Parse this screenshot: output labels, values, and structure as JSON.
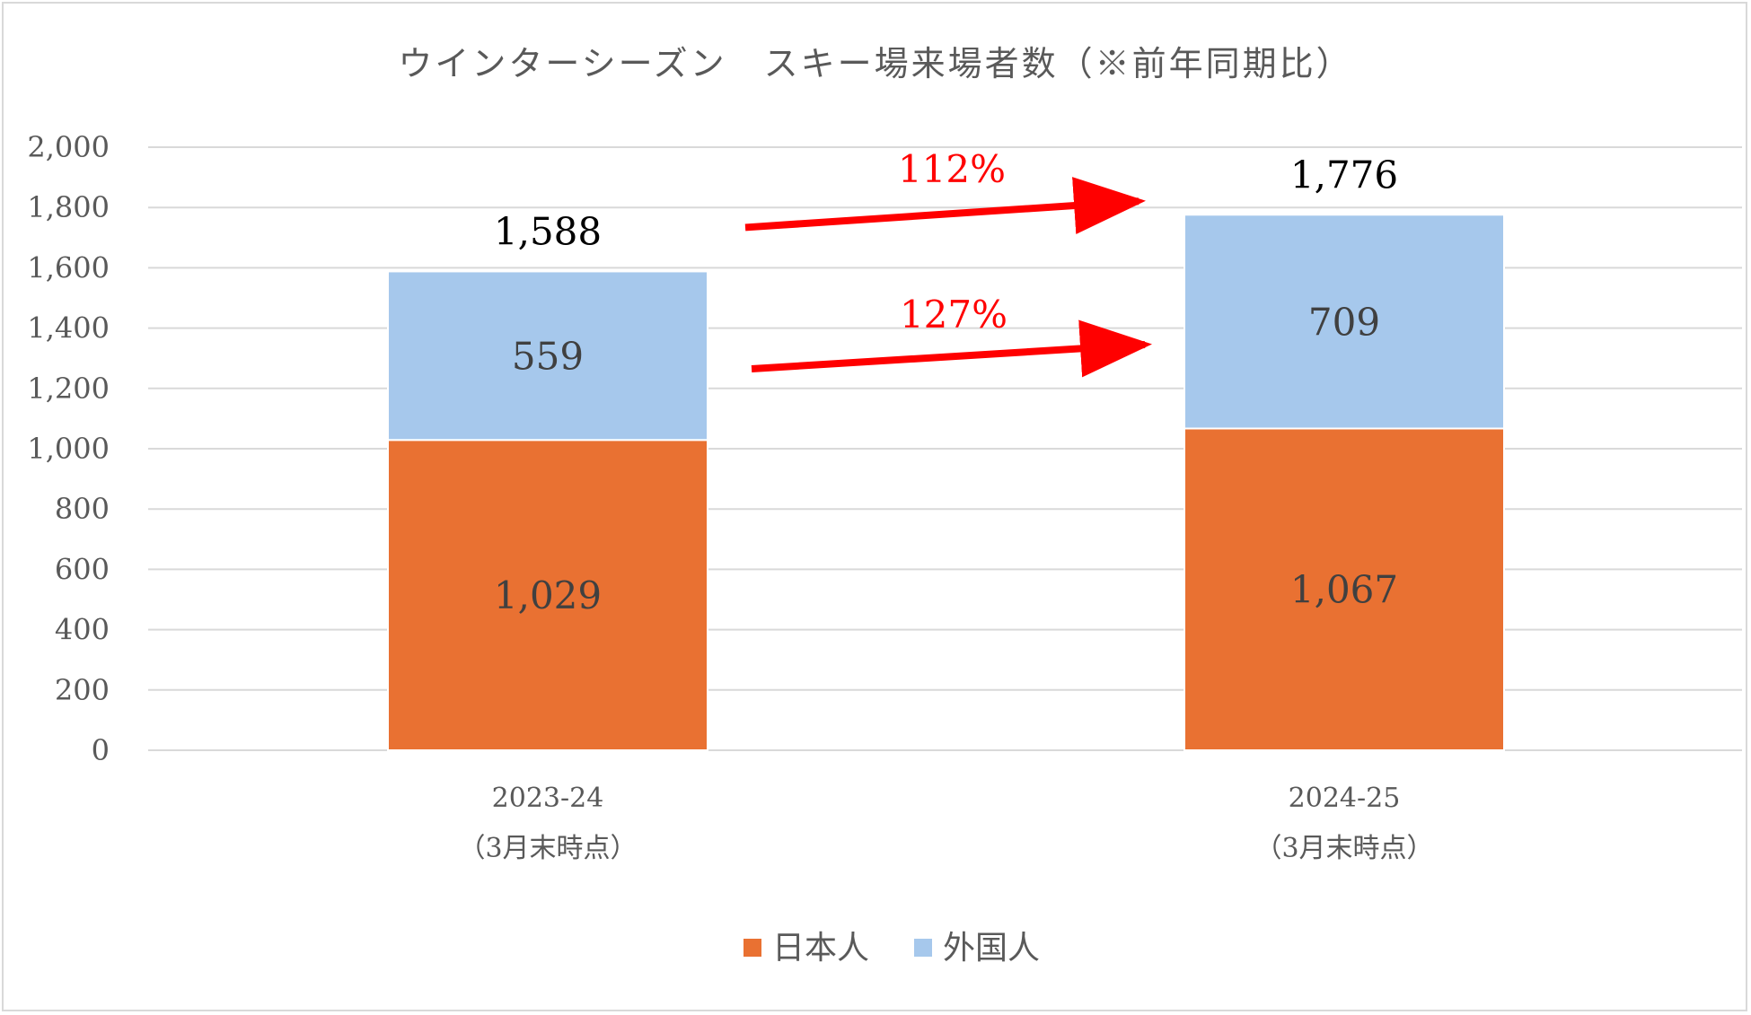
{
  "chart_data": {
    "type": "bar",
    "stacked": true,
    "title": "ウインターシーズン　スキー場来場者数（※前年同期比）",
    "categories": [
      {
        "line1": "2023-24",
        "line2": "（3月末時点）"
      },
      {
        "line1": "2024-25",
        "line2": "（3月末時点）"
      }
    ],
    "series": [
      {
        "name": "日本人",
        "color": "#E97132",
        "values": [
          1029,
          1067
        ],
        "labels": [
          "1,029",
          "1,067"
        ]
      },
      {
        "name": "外国人",
        "color": "#A6C8EC",
        "values": [
          559,
          709
        ],
        "labels": [
          "559",
          "709"
        ]
      }
    ],
    "totals": [
      {
        "value": 1588,
        "label": "1,588"
      },
      {
        "value": 1776,
        "label": "1,776"
      }
    ],
    "yaxis": {
      "min": 0,
      "max": 2000,
      "step": 200,
      "ticks": [
        "0",
        "200",
        "400",
        "600",
        "800",
        "1,000",
        "1,200",
        "1,400",
        "1,600",
        "1,800",
        "2,000"
      ]
    },
    "annotations": [
      {
        "text": "112%",
        "color": "#FF0000",
        "from_series": "total"
      },
      {
        "text": "127%",
        "color": "#FF0000",
        "from_series": "外国人"
      }
    ],
    "legend": {
      "position": "bottom",
      "items": [
        "日本人",
        "外国人"
      ]
    },
    "grid": true
  }
}
